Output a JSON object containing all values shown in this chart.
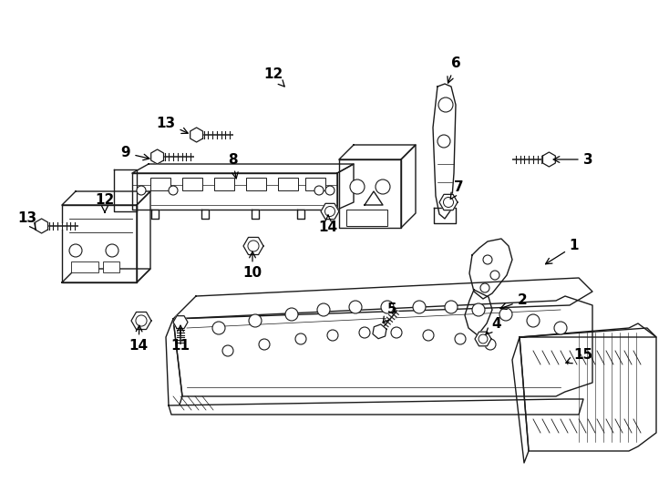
{
  "bg": "#ffffff",
  "lc": "#1a1a1a",
  "fig_w": 7.34,
  "fig_h": 5.4,
  "dpi": 100,
  "labels": [
    [
      "1",
      630,
      270,
      595,
      292
    ],
    [
      "2",
      573,
      330,
      545,
      340
    ],
    [
      "3",
      645,
      175,
      603,
      175
    ],
    [
      "4",
      545,
      355,
      530,
      370
    ],
    [
      "5",
      430,
      340,
      418,
      358
    ],
    [
      "6",
      500,
      70,
      490,
      95
    ],
    [
      "7",
      503,
      205,
      492,
      222
    ],
    [
      "8",
      255,
      175,
      260,
      200
    ],
    [
      "9",
      138,
      168,
      168,
      175
    ],
    [
      "10",
      277,
      300,
      277,
      272
    ],
    [
      "11",
      198,
      380,
      198,
      353
    ],
    [
      "12",
      115,
      220,
      115,
      237
    ],
    [
      "12",
      300,
      82,
      315,
      98
    ],
    [
      "13",
      30,
      240,
      40,
      253
    ],
    [
      "13",
      182,
      135,
      210,
      148
    ],
    [
      "14",
      152,
      380,
      153,
      353
    ],
    [
      "14",
      360,
      250,
      360,
      235
    ],
    [
      "15",
      640,
      390,
      617,
      400
    ]
  ]
}
